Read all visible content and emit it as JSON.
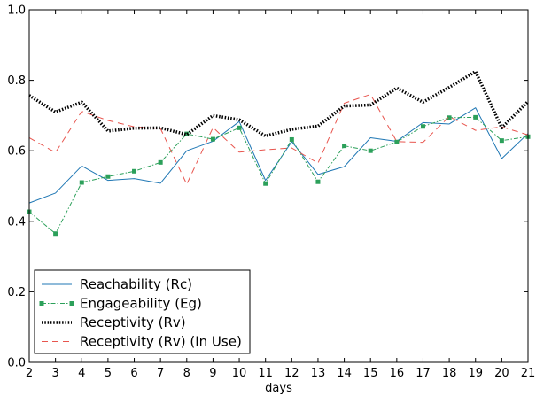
{
  "chart_data": {
    "type": "line",
    "xlabel": "days",
    "ylabel": "",
    "xlim": [
      2,
      21
    ],
    "ylim": [
      0.0,
      1.0
    ],
    "x": [
      2,
      3,
      4,
      5,
      6,
      7,
      8,
      9,
      10,
      11,
      12,
      13,
      14,
      15,
      16,
      17,
      18,
      19,
      20,
      21
    ],
    "xticks": [
      "2",
      "3",
      "4",
      "5",
      "6",
      "7",
      "8",
      "9",
      "10",
      "11",
      "12",
      "13",
      "14",
      "15",
      "16",
      "17",
      "18",
      "19",
      "20",
      "21"
    ],
    "yticks": [
      "0.0",
      "0.2",
      "0.4",
      "0.6",
      "0.8",
      "1.0"
    ],
    "legend_position": "bottom-left",
    "grid": false,
    "series": [
      {
        "name": "Reachability (Rc)",
        "color": "#1f77b4",
        "style": "solid",
        "values": [
          0.452,
          0.48,
          0.557,
          0.516,
          0.521,
          0.508,
          0.6,
          0.627,
          0.683,
          0.516,
          0.626,
          0.533,
          0.555,
          0.637,
          0.627,
          0.68,
          0.676,
          0.722,
          0.578,
          0.649
        ]
      },
      {
        "name": "Engageability (Eg)",
        "color": "#2ca05a",
        "style": "dashdot-square",
        "values": [
          0.427,
          0.365,
          0.51,
          0.527,
          0.542,
          0.567,
          0.648,
          0.633,
          0.665,
          0.507,
          0.632,
          0.512,
          0.614,
          0.6,
          0.625,
          0.669,
          0.694,
          0.695,
          0.629,
          0.64
        ]
      },
      {
        "name": "Receptivity (Rv)",
        "color": "#000000",
        "style": "dotted-thick",
        "values": [
          0.757,
          0.71,
          0.738,
          0.656,
          0.664,
          0.665,
          0.646,
          0.7,
          0.688,
          0.642,
          0.661,
          0.67,
          0.727,
          0.73,
          0.778,
          0.738,
          0.78,
          0.825,
          0.665,
          0.74
        ]
      },
      {
        "name": "Receptivity (Rv) (In Use)",
        "color": "#e8554e",
        "style": "dashed",
        "values": [
          0.637,
          0.595,
          0.712,
          0.686,
          0.668,
          0.663,
          0.505,
          0.666,
          0.596,
          0.603,
          0.608,
          0.565,
          0.735,
          0.76,
          0.626,
          0.624,
          0.697,
          0.658,
          0.668,
          0.645
        ]
      }
    ]
  }
}
